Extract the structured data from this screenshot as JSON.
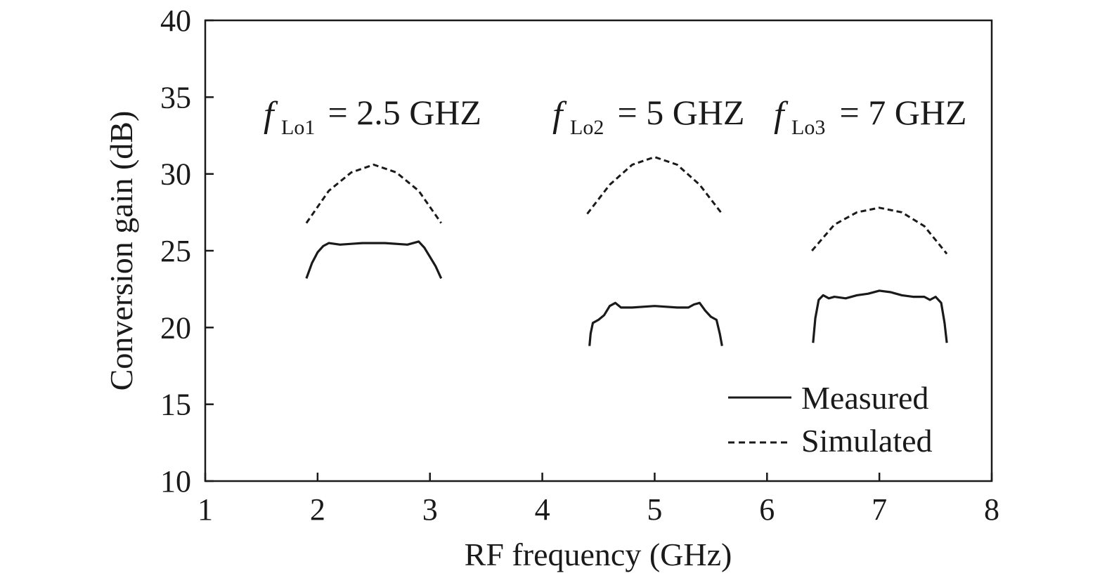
{
  "chart_data": {
    "type": "line",
    "xlabel": "RF frequency (GHz)",
    "ylabel": "Conversion gain (dB)",
    "xlim": [
      1,
      8
    ],
    "ylim": [
      10,
      40
    ],
    "xticks": [
      "1",
      "2",
      "3",
      "4",
      "5",
      "6",
      "7",
      "8"
    ],
    "yticks": [
      "10",
      "15",
      "20",
      "25",
      "30",
      "35",
      "40"
    ],
    "grid": false,
    "legend_placement": "bottom-right",
    "legend": [
      {
        "label": "Measured",
        "style": "solid"
      },
      {
        "label": "Simulated",
        "style": "dashed"
      }
    ],
    "annotations": [
      {
        "f": "f",
        "sub": "Lo1",
        "text": " = 2.5 GHZ"
      },
      {
        "f": "f",
        "sub": "Lo2",
        "text": " = 5 GHZ"
      },
      {
        "f": "f",
        "sub": "Lo3",
        "text": " = 7 GHZ"
      }
    ],
    "series": [
      {
        "style": "dashed",
        "x": [
          1.9,
          2.1,
          2.3,
          2.5,
          2.7,
          2.9,
          3.1
        ],
        "y": [
          26.8,
          28.9,
          30.1,
          30.6,
          30.1,
          28.9,
          26.8
        ]
      },
      {
        "style": "solid",
        "x": [
          1.9,
          1.95,
          2.0,
          2.05,
          2.1,
          2.2,
          2.4,
          2.6,
          2.8,
          2.9,
          2.95,
          3.0,
          3.05,
          3.1
        ],
        "y": [
          23.2,
          24.2,
          24.9,
          25.3,
          25.5,
          25.4,
          25.5,
          25.5,
          25.4,
          25.6,
          25.2,
          24.6,
          24.0,
          23.2
        ]
      },
      {
        "style": "dashed",
        "x": [
          4.4,
          4.6,
          4.8,
          5.0,
          5.2,
          5.4,
          5.6
        ],
        "y": [
          27.4,
          29.3,
          30.6,
          31.1,
          30.6,
          29.3,
          27.4
        ]
      },
      {
        "style": "solid",
        "x": [
          4.42,
          4.43,
          4.45,
          4.5,
          4.55,
          4.6,
          4.65,
          4.7,
          4.8,
          5.0,
          5.2,
          5.3,
          5.35,
          5.4,
          5.45,
          5.5,
          5.55,
          5.58,
          5.6
        ],
        "y": [
          18.8,
          19.6,
          20.3,
          20.5,
          20.8,
          21.4,
          21.6,
          21.3,
          21.3,
          21.4,
          21.3,
          21.3,
          21.5,
          21.6,
          21.1,
          20.7,
          20.5,
          19.6,
          18.8
        ]
      },
      {
        "style": "dashed",
        "x": [
          6.4,
          6.6,
          6.8,
          7.0,
          7.2,
          7.4,
          7.6
        ],
        "y": [
          25.0,
          26.7,
          27.5,
          27.8,
          27.5,
          26.6,
          24.8
        ]
      },
      {
        "style": "solid",
        "x": [
          6.41,
          6.43,
          6.46,
          6.5,
          6.55,
          6.6,
          6.7,
          6.8,
          6.9,
          7.0,
          7.1,
          7.2,
          7.3,
          7.4,
          7.45,
          7.5,
          7.55,
          7.58,
          7.6
        ],
        "y": [
          19.0,
          20.6,
          21.8,
          22.1,
          21.9,
          22.0,
          21.9,
          22.1,
          22.2,
          22.4,
          22.3,
          22.1,
          22.0,
          22.0,
          21.8,
          22.0,
          21.6,
          20.3,
          19.0
        ]
      }
    ]
  }
}
